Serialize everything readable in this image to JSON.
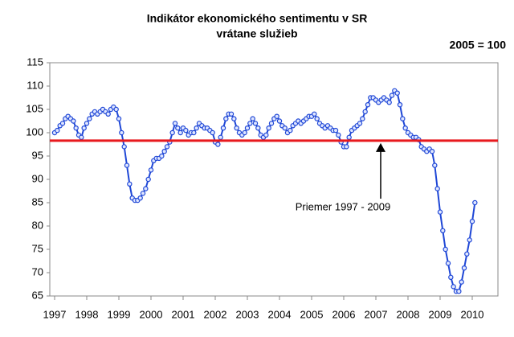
{
  "chart_data": {
    "type": "line",
    "title": [
      "Indikátor ekonomického sentimentu v SR",
      "vrátane služieb"
    ],
    "base_note": "2005 = 100",
    "annotation": "Priemer 1997 - 2009",
    "reference_line": 98.3,
    "reference_color": "#e8191e",
    "xlim": [
      1996.85,
      2010.8
    ],
    "xticks": [
      1997,
      1998,
      1999,
      2000,
      2001,
      2002,
      2003,
      2004,
      2005,
      2006,
      2007,
      2008,
      2009,
      2010
    ],
    "ylim": [
      65,
      115
    ],
    "yticks": [
      65,
      70,
      75,
      80,
      85,
      90,
      95,
      100,
      105,
      110,
      115
    ],
    "grid": false,
    "series": [
      {
        "color": "#1f47d6",
        "x": [
          1997,
          1997.083,
          1997.167,
          1997.25,
          1997.333,
          1997.417,
          1997.5,
          1997.583,
          1997.667,
          1997.75,
          1997.833,
          1997.917,
          1998,
          1998.083,
          1998.167,
          1998.25,
          1998.333,
          1998.417,
          1998.5,
          1998.583,
          1998.667,
          1998.75,
          1998.833,
          1998.917,
          1999,
          1999.083,
          1999.167,
          1999.25,
          1999.333,
          1999.417,
          1999.5,
          1999.583,
          1999.667,
          1999.75,
          1999.833,
          1999.917,
          2000,
          2000.083,
          2000.167,
          2000.25,
          2000.333,
          2000.417,
          2000.5,
          2000.583,
          2000.667,
          2000.75,
          2000.833,
          2000.917,
          2001,
          2001.083,
          2001.167,
          2001.25,
          2001.333,
          2001.417,
          2001.5,
          2001.583,
          2001.667,
          2001.75,
          2001.833,
          2001.917,
          2002,
          2002.083,
          2002.167,
          2002.25,
          2002.333,
          2002.417,
          2002.5,
          2002.583,
          2002.667,
          2002.75,
          2002.833,
          2002.917,
          2003,
          2003.083,
          2003.167,
          2003.25,
          2003.333,
          2003.417,
          2003.5,
          2003.583,
          2003.667,
          2003.75,
          2003.833,
          2003.917,
          2004,
          2004.083,
          2004.167,
          2004.25,
          2004.333,
          2004.417,
          2004.5,
          2004.583,
          2004.667,
          2004.75,
          2004.833,
          2004.917,
          2005,
          2005.083,
          2005.167,
          2005.25,
          2005.333,
          2005.417,
          2005.5,
          2005.583,
          2005.667,
          2005.75,
          2005.833,
          2005.917,
          2006,
          2006.083,
          2006.167,
          2006.25,
          2006.333,
          2006.417,
          2006.5,
          2006.583,
          2006.667,
          2006.75,
          2006.833,
          2006.917,
          2007,
          2007.083,
          2007.167,
          2007.25,
          2007.333,
          2007.417,
          2007.5,
          2007.583,
          2007.667,
          2007.75,
          2007.833,
          2007.917,
          2008,
          2008.083,
          2008.167,
          2008.25,
          2008.333,
          2008.417,
          2008.5,
          2008.583,
          2008.667,
          2008.75,
          2008.833,
          2008.917,
          2009,
          2009.083,
          2009.167,
          2009.25,
          2009.333,
          2009.417,
          2009.5,
          2009.583,
          2009.667,
          2009.75,
          2009.833,
          2009.917,
          2010,
          2010.083
        ],
        "values": [
          100,
          100.5,
          101.5,
          102,
          103,
          103.5,
          103,
          102.5,
          101,
          99.5,
          99,
          101,
          102,
          103,
          104,
          104.5,
          104,
          104.5,
          105,
          104.5,
          104,
          105,
          105.5,
          105,
          103,
          100,
          97,
          93,
          89,
          86,
          85.5,
          85.5,
          86,
          87,
          88,
          90,
          92,
          94,
          94.5,
          94.5,
          95,
          96,
          97,
          98,
          100,
          102,
          101,
          100,
          101,
          100.5,
          99.5,
          100,
          100,
          101,
          102,
          101.5,
          101,
          101,
          100.5,
          100,
          98,
          97.5,
          99,
          101,
          103,
          104,
          104,
          103,
          101,
          100,
          99.5,
          100,
          101,
          102,
          103,
          102,
          101,
          99.5,
          99,
          99.5,
          101,
          102,
          103,
          103.5,
          102.5,
          101.5,
          101,
          100,
          100.5,
          101.5,
          102,
          102.5,
          102,
          102.5,
          103,
          103.5,
          103.5,
          104,
          103,
          102,
          101.5,
          101,
          101.5,
          101,
          100.5,
          100.5,
          99.5,
          98,
          97,
          97,
          99,
          100.5,
          101,
          101.5,
          102,
          103,
          104.5,
          106,
          107.5,
          107.5,
          107,
          106.5,
          107,
          107.5,
          107,
          106.5,
          108,
          109,
          108.5,
          106,
          103,
          101,
          100,
          99.5,
          99,
          99,
          98.5,
          97,
          96.5,
          96,
          96.5,
          96,
          93,
          88,
          83,
          79,
          75,
          72,
          69,
          67,
          66,
          66,
          68,
          71,
          74,
          77,
          81,
          85
        ]
      }
    ]
  }
}
